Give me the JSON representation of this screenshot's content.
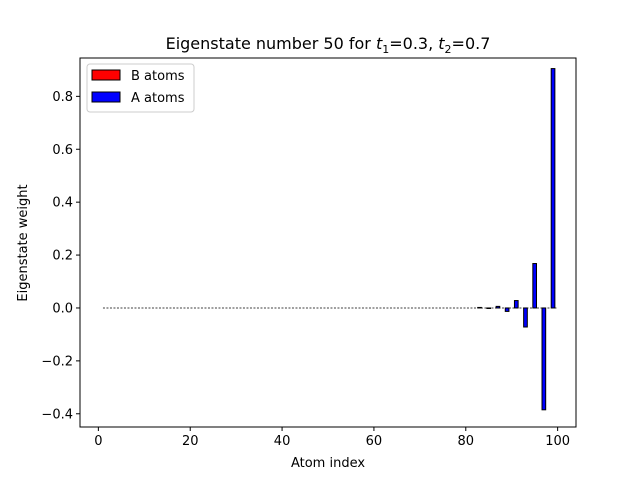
{
  "chart_data": {
    "type": "bar",
    "title": {
      "main": "Eigenstate number 50 for ",
      "t1_symbol": "t",
      "t1_sub": "1",
      "t1_value": "=0.3, ",
      "t2_symbol": "t",
      "t2_sub": "2",
      "t2_value": "=0.7"
    },
    "xlabel": "Atom index",
    "ylabel": "Eigenstate weight",
    "xlim": [
      -4,
      104
    ],
    "ylim": [
      -0.45,
      0.945
    ],
    "xticks": [
      0,
      20,
      40,
      60,
      80,
      100
    ],
    "yticks": [
      -0.4,
      -0.2,
      0.0,
      0.2,
      0.4,
      0.6,
      0.8
    ],
    "ytick_labels": [
      "−0.4",
      "−0.2",
      "0.0",
      "0.2",
      "0.4",
      "0.6",
      "0.8"
    ],
    "xtick_labels": [
      "0",
      "20",
      "40",
      "60",
      "80",
      "100"
    ],
    "legend": {
      "position": "upper left",
      "entries": [
        {
          "label": "B atoms",
          "color": "#ff0000"
        },
        {
          "label": "A atoms",
          "color": "#0000ff"
        }
      ]
    },
    "series": [
      {
        "name": "A atoms",
        "color": "#0000ff",
        "x": [
          83,
          85,
          87,
          89,
          91,
          93,
          95,
          97,
          99
        ],
        "values": [
          0.002,
          -0.002,
          0.006,
          -0.013,
          0.028,
          -0.072,
          0.168,
          -0.385,
          0.905
        ]
      },
      {
        "name": "B atoms",
        "color": "#ff0000",
        "x": [
          2,
          4,
          6,
          8,
          10,
          12,
          14,
          16,
          18,
          20,
          22,
          24,
          26,
          28,
          30,
          32,
          34,
          36,
          38,
          40,
          42,
          44,
          46,
          48,
          50,
          52,
          54,
          56,
          58,
          60,
          62,
          64,
          66,
          68,
          70,
          72,
          74,
          76,
          78,
          80,
          82,
          84,
          86,
          88,
          90,
          92,
          94,
          96,
          98,
          100
        ],
        "values": [
          0,
          0,
          0,
          0,
          0,
          0,
          0,
          0,
          0,
          0,
          0,
          0,
          0,
          0,
          0,
          0,
          0,
          0,
          0,
          0,
          0,
          0,
          0,
          0,
          0,
          0,
          0,
          0,
          0,
          0,
          0,
          0,
          0,
          0,
          0,
          0,
          0,
          0,
          0,
          0,
          0,
          0,
          0,
          0,
          0,
          0,
          0,
          0,
          0,
          0
        ]
      }
    ],
    "zero_line": {
      "from": 1,
      "to": 100,
      "style": "dashed",
      "color": "#000000"
    }
  }
}
